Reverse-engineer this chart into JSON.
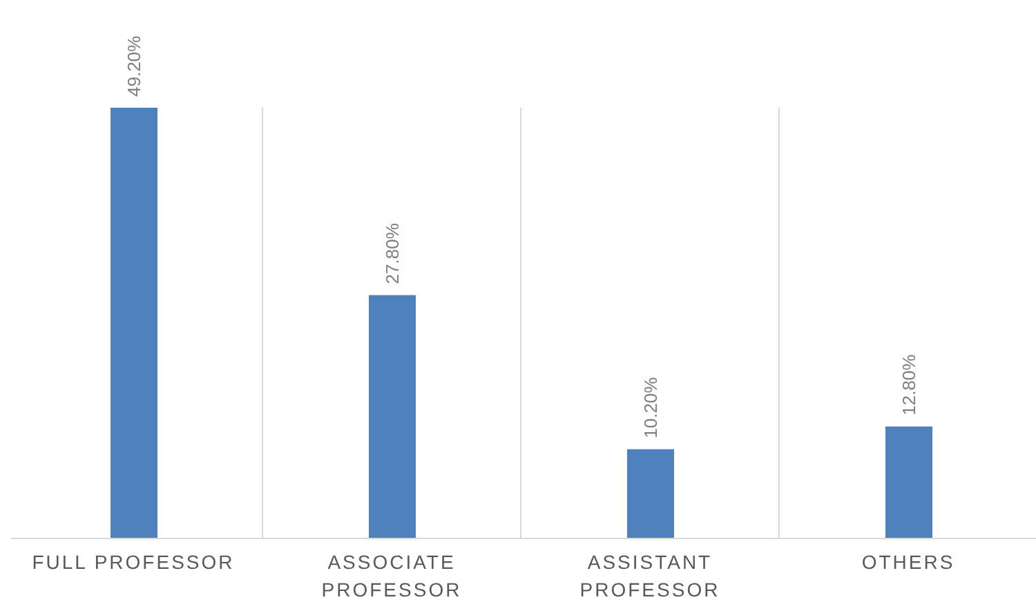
{
  "chart_data": {
    "type": "bar",
    "categories": [
      "FULL PROFESSOR",
      "ASSOCIATE PROFESSOR",
      "ASSISTANT PROFESSOR",
      "OTHERS"
    ],
    "values": [
      49.2,
      27.8,
      10.2,
      12.8
    ],
    "value_labels": [
      "49.20%",
      "27.80%",
      "10.20%",
      "12.80%"
    ],
    "color": "#4f81bd",
    "grid": "x"
  }
}
